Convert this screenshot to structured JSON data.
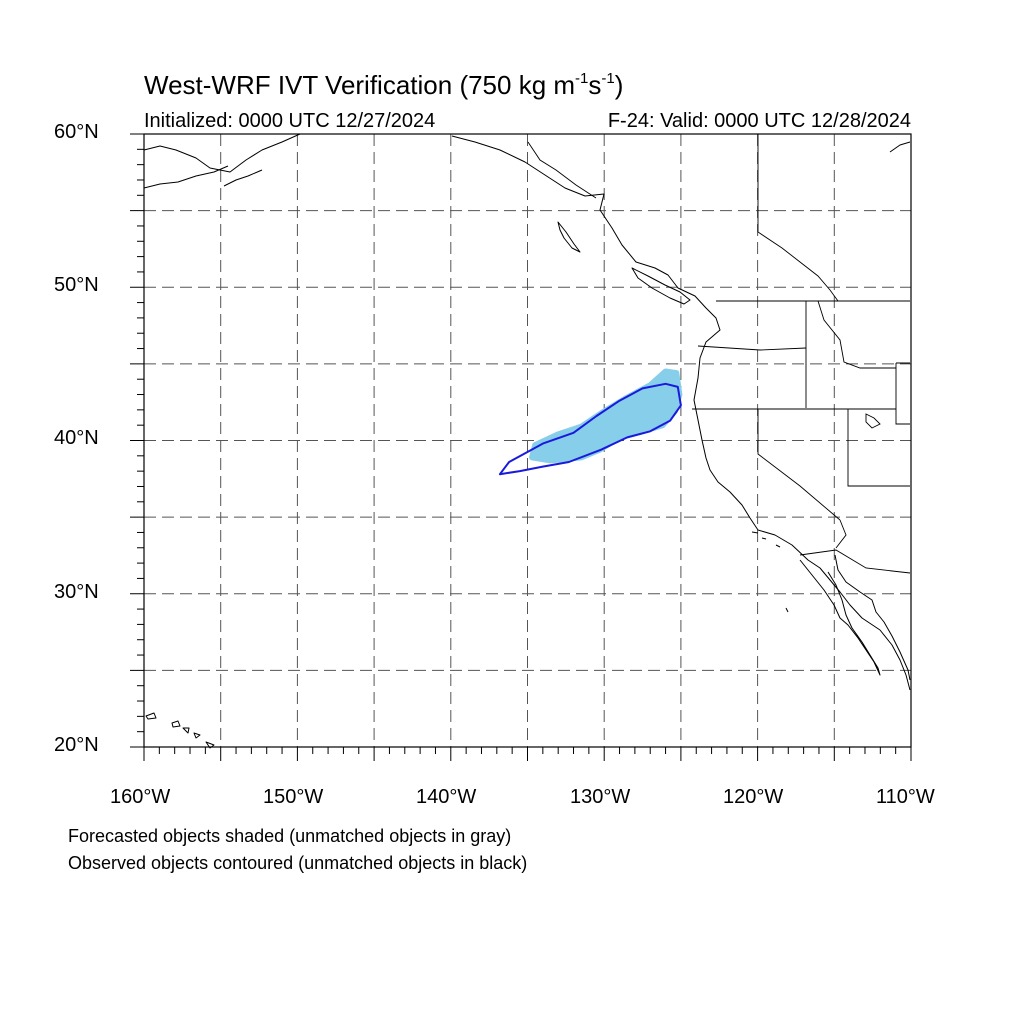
{
  "title": {
    "main": "West-WRF IVT Verification (750 kg m",
    "exp1": "-1",
    "mid": "s",
    "exp2": "-1",
    "close": ")"
  },
  "initialized": "Initialized: 0000 UTC 12/27/2024",
  "valid": "F-24: Valid: 0000 UTC 12/28/2024",
  "lat_labels": [
    "60°N",
    "50°N",
    "40°N",
    "30°N",
    "20°N"
  ],
  "lon_labels": [
    "160°W",
    "150°W",
    "140°W",
    "130°W",
    "120°W",
    "110°W"
  ],
  "notes": [
    "Forecasted objects shaded (unmatched objects in gray)",
    "Observed objects contoured (unmatched objects in black)"
  ],
  "map": {
    "lon_range": [
      -160,
      -110
    ],
    "lat_range": [
      20,
      60
    ],
    "grid_lon_step": 5,
    "grid_lat_step": 5,
    "grid_style": "dashed",
    "colors": {
      "forecast_fill": "#87ceeb",
      "observed_contour": "#1a1adc",
      "coastline": "#000000",
      "grid": "#555555"
    },
    "forecast_object": [
      [
        -134.7,
        38.9
      ],
      [
        -134.5,
        39.7
      ],
      [
        -133.0,
        40.4
      ],
      [
        -131.5,
        40.9
      ],
      [
        -130.0,
        41.9
      ],
      [
        -128.5,
        42.8
      ],
      [
        -127.0,
        43.6
      ],
      [
        -126.0,
        44.5
      ],
      [
        -125.3,
        44.4
      ],
      [
        -125.1,
        43.0
      ],
      [
        -125.4,
        41.9
      ],
      [
        -126.2,
        41.0
      ],
      [
        -127.5,
        40.6
      ],
      [
        -129.0,
        40.2
      ],
      [
        -130.3,
        39.4
      ],
      [
        -131.5,
        38.9
      ],
      [
        -133.5,
        38.7
      ]
    ],
    "observed_object": [
      [
        -136.8,
        37.8
      ],
      [
        -136.2,
        38.6
      ],
      [
        -134.0,
        39.8
      ],
      [
        -132.0,
        40.5
      ],
      [
        -130.5,
        41.6
      ],
      [
        -129.0,
        42.6
      ],
      [
        -127.5,
        43.4
      ],
      [
        -126.0,
        43.7
      ],
      [
        -125.2,
        43.5
      ],
      [
        -125.0,
        42.3
      ],
      [
        -125.7,
        41.3
      ],
      [
        -127.0,
        40.6
      ],
      [
        -128.5,
        40.2
      ],
      [
        -130.2,
        39.4
      ],
      [
        -132.3,
        38.6
      ],
      [
        -134.0,
        38.3
      ],
      [
        -135.5,
        38.0
      ]
    ]
  }
}
